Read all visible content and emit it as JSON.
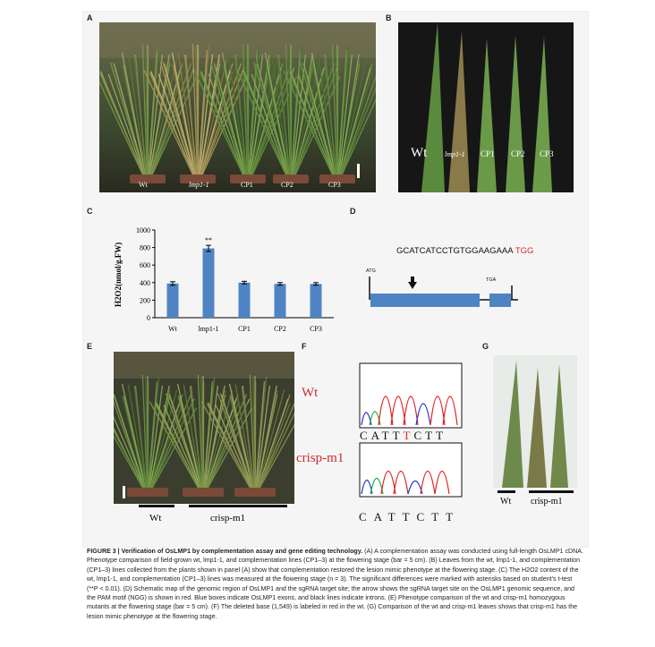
{
  "panels": {
    "A": {
      "label": "A",
      "plants": [
        "Wt",
        "lmp1-1",
        "CP1",
        "CP2",
        "CP3"
      ]
    },
    "B": {
      "label": "B",
      "leaves": [
        "Wt",
        "lmp1-1",
        "CP1",
        "CP2",
        "CP3"
      ]
    },
    "C": {
      "label": "C",
      "sig_mark": "**"
    },
    "D": {
      "label": "D",
      "seq_main": "GCATCATCCTGTGGAAGAAA",
      "seq_pam": "TGG",
      "start_codon": "ATG",
      "stop_codon": "TGA"
    },
    "E": {
      "label": "E",
      "groups": [
        "Wt",
        "crisp-m1"
      ]
    },
    "F": {
      "label": "F",
      "rows": [
        {
          "name": "Wt",
          "bases": [
            "C",
            "A",
            "T",
            "T",
            "T",
            "C",
            "T",
            "T"
          ],
          "red_index": 4
        },
        {
          "name": "crisp-m1",
          "bases": [
            "C",
            "A",
            "T",
            "T",
            "C",
            "T",
            "T"
          ],
          "red_index": -1
        }
      ]
    },
    "G": {
      "label": "G",
      "groups": [
        "Wt",
        "crisp-m1"
      ]
    }
  },
  "chart_data": {
    "type": "bar",
    "categories": [
      "Wt",
      "lmp1-1",
      "CP1",
      "CP2",
      "CP3"
    ],
    "values": [
      390,
      790,
      400,
      385,
      385
    ],
    "errors": [
      20,
      35,
      15,
      15,
      15
    ],
    "ylabel": "H2O2(nmol/g.FW)",
    "ylim": [
      0,
      1000
    ],
    "yticks": [
      0,
      200,
      400,
      600,
      800,
      1000
    ],
    "color": "#4f84c4",
    "significant_index": 1
  },
  "caption": {
    "title": "FIGURE 3 | Verification of OsLMP1 by complementation assay and gene editing technology.",
    "body": "(A) A complementation assay was conducted using full-length OsLMP1 cDNA. Phenotype comparison of field-grown wt, lmp1-1, and complementation lines (CP1–3) at the flowering stage (bar = 5 cm). (B) Leaves from the wt, lmp1-1, and complementation (CP1–3) lines collected from the plants shown in panel (A) show that complementation restored the lesion mimic phenotype at the flowering stage. (C) The H2O2 content of the wt, lmp1-1, and complementation (CP1–3) lines was measured at the flowering stage (n = 3). The significant differences were marked with asterisks based on student's t-test (**P < 0.01). (D) Schematic map of the genomic region of OsLMP1 and the sgRNA target site; the arrow shows the sgRNA target site on the OsLMP1 genomic sequence, and the PAM motif (NGG) is shown in red. Blue boxes indicate OsLMP1 exons, and black lines indicate introns. (E) Phenotype comparison of the wt and crisp-m1 homozygous mutants at the flowering stage (bar = 5 cm). (F) The deleted base (1,549) is labeled in red in the wt. (G) Comparison of the wt and crisp-m1 leaves shows that crisp-m1 has the lesion mimic phenotype at the flowering stage."
  }
}
